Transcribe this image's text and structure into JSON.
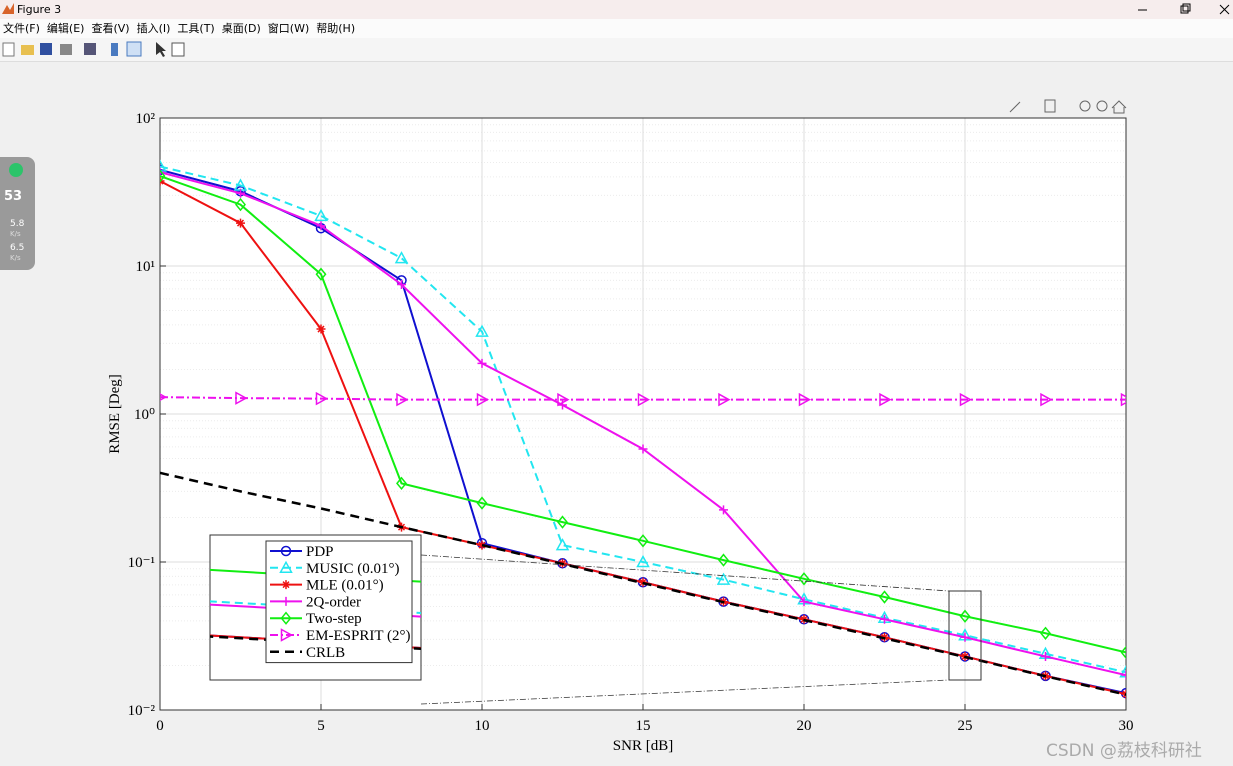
{
  "window": {
    "title": "Figure 3",
    "menu": [
      "文件(F)",
      "编辑(E)",
      "查看(V)",
      "插入(I)",
      "工具(T)",
      "桌面(D)",
      "窗口(W)",
      "帮助(H)"
    ]
  },
  "side_widget": {
    "percent": "53",
    "up": "5.8",
    "up_unit": "K/s",
    "down": "6.5",
    "down_unit": "K/s"
  },
  "watermark": "CSDN @荔枝科研社",
  "chart_data": {
    "type": "line",
    "xlabel": "SNR [dB]",
    "ylabel": "RMSE [Deg]",
    "x": [
      0,
      2.5,
      5,
      7.5,
      10,
      12.5,
      15,
      17.5,
      20,
      22.5,
      25,
      27.5,
      30
    ],
    "xlim": [
      0,
      30
    ],
    "xticks": [
      0,
      5,
      10,
      15,
      20,
      25,
      30
    ],
    "ylim": [
      0.01,
      100
    ],
    "log_y": true,
    "grid": true,
    "yticks": [
      {
        "value": 0.01,
        "label": "10⁻²"
      },
      {
        "value": 0.1,
        "label": "10⁻¹"
      },
      {
        "value": 1,
        "label": "10⁰"
      },
      {
        "value": 10,
        "label": "10¹"
      },
      {
        "value": 100,
        "label": "10²"
      }
    ],
    "legend": "lower left",
    "series": [
      {
        "name": "PDP",
        "color": "#1010d0",
        "marker": "circle",
        "dash": "solid",
        "values": [
          44.6,
          32,
          18,
          8,
          0.134,
          0.098,
          0.073,
          0.054,
          0.041,
          0.031,
          0.023,
          0.017,
          0.013
        ]
      },
      {
        "name": "MUSIC (0.01°)",
        "color": "#22e6f0",
        "marker": "triangle-up",
        "dash": "dashed",
        "values": [
          47,
          35,
          21.8,
          11.3,
          3.6,
          0.13,
          0.1,
          0.076,
          0.056,
          0.042,
          0.032,
          0.024,
          0.018
        ]
      },
      {
        "name": "MLE (0.01°)",
        "color": "#ee1111",
        "marker": "asterisk",
        "dash": "solid",
        "values": [
          37.5,
          19.5,
          3.75,
          0.172,
          0.13,
          0.098,
          0.073,
          0.054,
          0.041,
          0.031,
          0.023,
          0.017,
          0.0128
        ]
      },
      {
        "name": "2Q-order",
        "color": "#ee11ee",
        "marker": "plus",
        "dash": "solid",
        "values": [
          43,
          31,
          18.7,
          7.5,
          2.2,
          1.15,
          0.58,
          0.225,
          0.054,
          0.041,
          0.031,
          0.023,
          0.0172
        ]
      },
      {
        "name": "Two-step",
        "color": "#11ee11",
        "marker": "diamond",
        "dash": "solid",
        "values": [
          40.5,
          26,
          8.8,
          0.34,
          0.25,
          0.186,
          0.139,
          0.103,
          0.077,
          0.058,
          0.043,
          0.033,
          0.0245
        ]
      },
      {
        "name": "EM-ESPRIT (2°)",
        "color": "#ee11ee",
        "marker": "triangle-right",
        "dash": "dashdot",
        "values": [
          1.3,
          1.28,
          1.27,
          1.25,
          1.25,
          1.25,
          1.25,
          1.25,
          1.25,
          1.25,
          1.25,
          1.25,
          1.25
        ]
      },
      {
        "name": "CRLB",
        "color": "#000000",
        "marker": "none",
        "dash": "bolddash",
        "values": [
          0.4,
          0.3,
          0.23,
          0.172,
          0.13,
          0.097,
          0.072,
          0.0535,
          0.0405,
          0.0305,
          0.0228,
          0.0169,
          0.0127
        ]
      }
    ]
  }
}
